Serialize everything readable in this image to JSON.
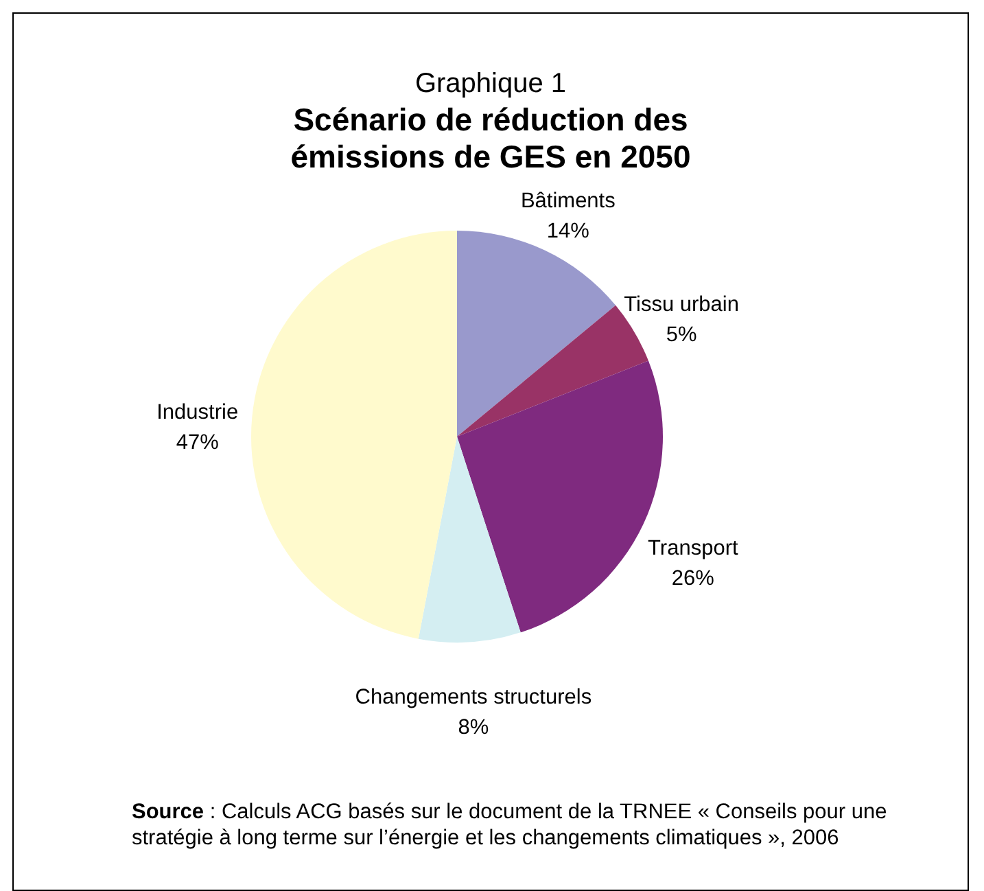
{
  "chart_data": {
    "type": "pie",
    "title": "Graphique 1",
    "subtitle": "Scénario de réduction des émissions de GES en 2050",
    "categories": [
      "Bâtiments",
      "Tissu urbain",
      "Transport",
      "Changements structurels",
      "Industrie"
    ],
    "values": [
      14,
      5,
      26,
      8,
      47
    ],
    "colors": [
      "#9999cc",
      "#993366",
      "#7f2a7f",
      "#d4eef2",
      "#fffacd"
    ],
    "value_labels": [
      "14%",
      "5%",
      "26%",
      "8%",
      "47%"
    ],
    "legend": false,
    "annotations": [
      "Source : Calculs ACG basés sur le document de la TRNEE « Conseils pour une stratégie à long terme sur l’énergie et les changements climatiques », 2006"
    ]
  }
}
